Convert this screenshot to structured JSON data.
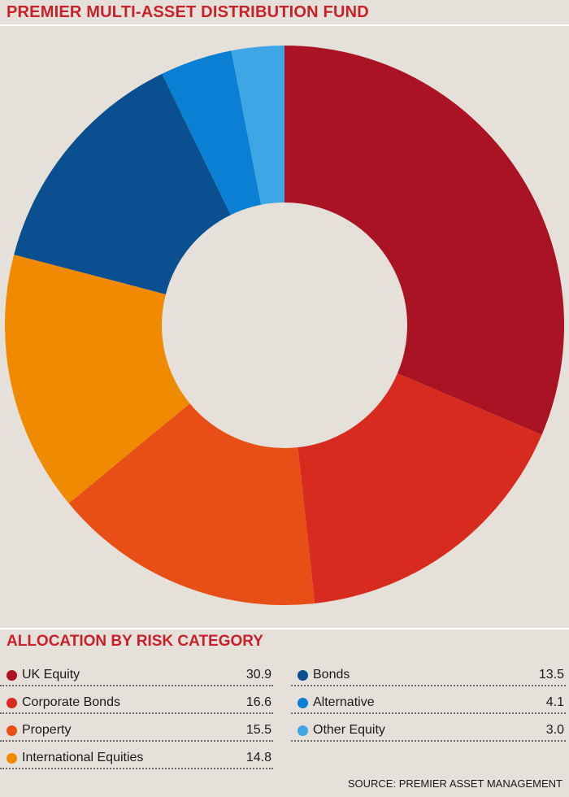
{
  "title": "PREMIER MULTI-ASSET DISTRIBUTION FUND",
  "subtitle": "ALLOCATION BY RISK CATEGORY",
  "source": "SOURCE: PREMIER ASSET MANAGEMENT",
  "chart_data": {
    "type": "pie",
    "title": "PREMIER MULTI-ASSET DISTRIBUTION FUND",
    "donut": true,
    "categories": [
      "UK Equity",
      "Corporate Bonds",
      "Property",
      "International Equities",
      "Bonds",
      "Alternative",
      "Other Equity"
    ],
    "values": [
      30.9,
      16.6,
      15.5,
      14.8,
      13.5,
      4.1,
      3.0
    ],
    "value_labels": [
      "30.9",
      "16.6",
      "15.5",
      "14.8",
      "13.5",
      "4.1",
      "3.0"
    ],
    "colors": [
      "#a91323",
      "#d62b1e",
      "#e84f17",
      "#f08a00",
      "#0a4f8f",
      "#0a7fd3",
      "#3fa6e6"
    ],
    "start": "12 o'clock, clockwise"
  }
}
